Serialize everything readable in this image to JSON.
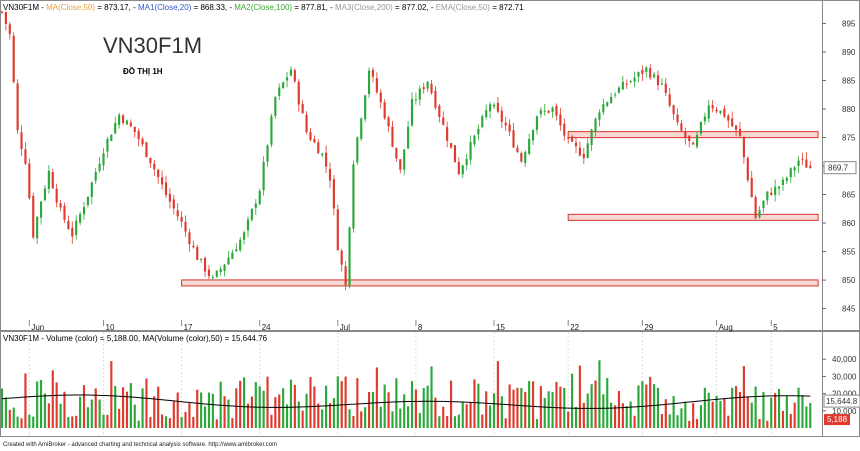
{
  "chart_data": [
    {
      "type": "candlestick",
      "symbol": "VN30F1M",
      "title": "VN30F1M",
      "subtitle": "ĐỒ THỊ 1H",
      "indicators": [
        {
          "label": "MA(Close,50)",
          "value": "873.17",
          "color": "#e8a33a"
        },
        {
          "label": "MA1(Close,20)",
          "value": "868.33",
          "color": "#2f59c9"
        },
        {
          "label": "MA2(Close,100)",
          "value": "877.81",
          "color": "#3aa832"
        },
        {
          "label": "MA3(Close,200)",
          "value": "877.02",
          "color": "#999999"
        },
        {
          "label": "EMA(Close,50)",
          "value": "872.71",
          "color": "#999999"
        }
      ],
      "ylim": [
        843,
        897
      ],
      "yticks": [
        845,
        850,
        855,
        860,
        865,
        870,
        875,
        880,
        885,
        890,
        895
      ],
      "xtick_labels": [
        "Jun",
        "10",
        "17",
        "24",
        "Jul",
        "8",
        "15",
        "22",
        "29",
        "Aug",
        "5"
      ],
      "last_price": "869.7",
      "up_color": "#2aa83a",
      "down_color": "#e03a2e",
      "levels": [
        {
          "name": "resistance-zone",
          "price": 875.5,
          "from": "22",
          "to": "end"
        },
        {
          "name": "support-zone-mid",
          "price": 861,
          "from": "22",
          "to": "end"
        },
        {
          "name": "support-zone-low",
          "price": 849.5,
          "from": "17",
          "to": "end"
        }
      ],
      "close_path": [
        {
          "t": 0,
          "c": 897
        },
        {
          "t": 2,
          "c": 893
        },
        {
          "t": 4,
          "c": 876
        },
        {
          "t": 6,
          "c": 871
        },
        {
          "t": 8,
          "c": 858
        },
        {
          "t": 10,
          "c": 864
        },
        {
          "t": 12,
          "c": 869
        },
        {
          "t": 15,
          "c": 862
        },
        {
          "t": 18,
          "c": 858
        },
        {
          "t": 22,
          "c": 865
        },
        {
          "t": 26,
          "c": 873
        },
        {
          "t": 30,
          "c": 879
        },
        {
          "t": 34,
          "c": 876
        },
        {
          "t": 38,
          "c": 871
        },
        {
          "t": 42,
          "c": 865
        },
        {
          "t": 46,
          "c": 860
        },
        {
          "t": 50,
          "c": 854
        },
        {
          "t": 54,
          "c": 850
        },
        {
          "t": 58,
          "c": 854
        },
        {
          "t": 62,
          "c": 858
        },
        {
          "t": 66,
          "c": 866
        },
        {
          "t": 70,
          "c": 882
        },
        {
          "t": 74,
          "c": 887
        },
        {
          "t": 78,
          "c": 876
        },
        {
          "t": 82,
          "c": 872
        },
        {
          "t": 84,
          "c": 868
        },
        {
          "t": 86,
          "c": 856
        },
        {
          "t": 88,
          "c": 849
        },
        {
          "t": 90,
          "c": 871
        },
        {
          "t": 94,
          "c": 887
        },
        {
          "t": 98,
          "c": 879
        },
        {
          "t": 102,
          "c": 869
        },
        {
          "t": 105,
          "c": 881
        },
        {
          "t": 109,
          "c": 885
        },
        {
          "t": 113,
          "c": 877
        },
        {
          "t": 117,
          "c": 869
        },
        {
          "t": 121,
          "c": 875
        },
        {
          "t": 125,
          "c": 881
        },
        {
          "t": 129,
          "c": 877
        },
        {
          "t": 133,
          "c": 871
        },
        {
          "t": 137,
          "c": 879
        },
        {
          "t": 141,
          "c": 880
        },
        {
          "t": 145,
          "c": 874
        },
        {
          "t": 149,
          "c": 872
        },
        {
          "t": 153,
          "c": 880
        },
        {
          "t": 157,
          "c": 883
        },
        {
          "t": 161,
          "c": 885
        },
        {
          "t": 165,
          "c": 887
        },
        {
          "t": 169,
          "c": 884
        },
        {
          "t": 173,
          "c": 877
        },
        {
          "t": 177,
          "c": 873
        },
        {
          "t": 181,
          "c": 881
        },
        {
          "t": 185,
          "c": 879
        },
        {
          "t": 189,
          "c": 875
        },
        {
          "t": 193,
          "c": 861
        },
        {
          "t": 196,
          "c": 865
        },
        {
          "t": 200,
          "c": 867
        },
        {
          "t": 204,
          "c": 871
        },
        {
          "t": 207,
          "c": 869.7
        }
      ],
      "xtick_positions_t": [
        7,
        26,
        46,
        66,
        86,
        106,
        126,
        145,
        164,
        183,
        197
      ]
    },
    {
      "type": "bar",
      "title": "VN30F1M - Volume (color) = 5,188.00, MA(Volume (color),50) = 15,644.76",
      "series_name": "Volume (color)",
      "volume_value": "5,188.00",
      "ma_label": "MA(Volume (color),50)",
      "ma_value": "15,644.76",
      "ylim": [
        0,
        50000
      ],
      "yticks": [
        "40,000",
        "30,000",
        "20,000",
        "10,000"
      ],
      "last_volume_label": "5,188",
      "last_ma_label": "15,644.8",
      "ma_color": "#000000"
    }
  ],
  "footer": "Created with AmiBroker - advanced charting and technical analysis software. http://www.amibroker.com"
}
